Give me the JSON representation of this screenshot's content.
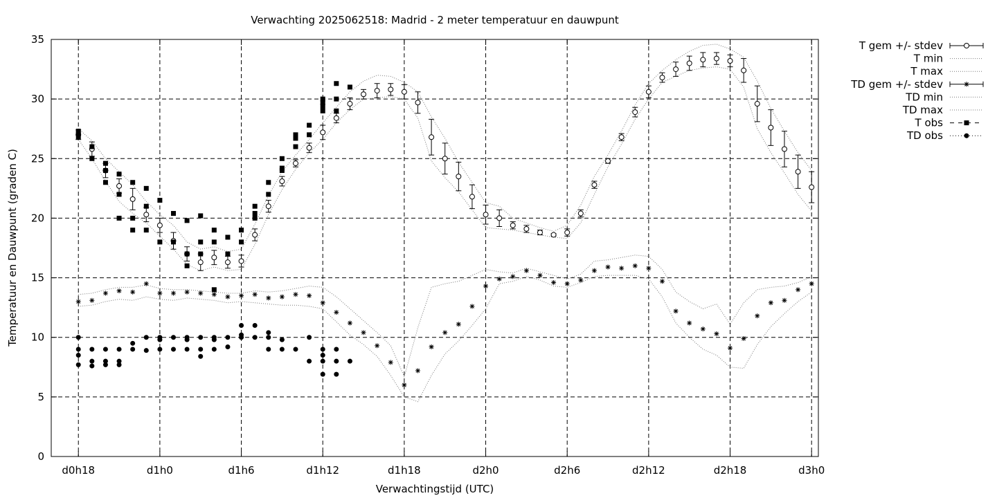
{
  "chart_data": {
    "type": "scatter",
    "title": "Verwachting 2025062518: Madrid - 2 meter temperatuur en dauwpunt",
    "xlabel": "Verwachtingstijd (UTC)",
    "ylabel": "Temperatuur en Dauwpunt (graden C)",
    "x_unit": "hours since d0h0",
    "xlim": [
      16,
      72.5
    ],
    "ylim": [
      0,
      35
    ],
    "x_ticks": [
      {
        "x": 18,
        "label": "d0h18"
      },
      {
        "x": 24,
        "label": "d1h0"
      },
      {
        "x": 30,
        "label": "d1h6"
      },
      {
        "x": 36,
        "label": "d1h12"
      },
      {
        "x": 42,
        "label": "d1h18"
      },
      {
        "x": 48,
        "label": "d2h0"
      },
      {
        "x": 54,
        "label": "d2h6"
      },
      {
        "x": 60,
        "label": "d2h12"
      },
      {
        "x": 66,
        "label": "d2h18"
      },
      {
        "x": 72,
        "label": "d3h0"
      }
    ],
    "y_ticks": [
      0,
      5,
      10,
      15,
      20,
      25,
      30,
      35
    ],
    "grid": true,
    "legend_position": "right, outside plot",
    "series": [
      {
        "name": "T gem +/- stdev",
        "style": "open-circle-errorbar",
        "x": [
          18,
          19,
          20,
          21,
          22,
          23,
          24,
          25,
          26,
          27,
          28,
          29,
          30,
          31,
          32,
          33,
          34,
          35,
          36,
          37,
          38,
          39,
          40,
          41,
          42,
          43,
          44,
          45,
          46,
          47,
          48,
          49,
          50,
          51,
          52,
          53,
          54,
          55,
          56,
          57,
          58,
          59,
          60,
          61,
          62,
          63,
          64,
          65,
          66,
          67,
          68,
          69,
          70,
          71,
          72
        ],
        "y": [
          27.0,
          25.8,
          24.0,
          22.7,
          21.6,
          20.3,
          19.4,
          18.1,
          17.0,
          16.3,
          16.7,
          16.3,
          16.4,
          18.6,
          21.0,
          23.1,
          24.6,
          25.9,
          27.2,
          28.4,
          29.6,
          30.4,
          30.7,
          30.8,
          30.6,
          29.7,
          26.8,
          25.0,
          23.5,
          21.8,
          20.3,
          20.0,
          19.4,
          19.1,
          18.8,
          18.6,
          18.8,
          20.4,
          22.8,
          24.8,
          26.8,
          28.9,
          30.6,
          31.8,
          32.5,
          33.0,
          33.3,
          33.4,
          33.2,
          32.4,
          29.6,
          27.6,
          25.8,
          23.9,
          22.6
        ],
        "err": [
          0.4,
          0.6,
          0.6,
          0.6,
          0.9,
          0.6,
          0.6,
          0.7,
          0.6,
          0.7,
          0.6,
          0.5,
          0.5,
          0.5,
          0.5,
          0.4,
          0.3,
          0.4,
          0.6,
          0.4,
          0.5,
          0.4,
          0.6,
          0.5,
          0.6,
          0.9,
          1.5,
          1.3,
          1.2,
          1.0,
          0.8,
          0.7,
          0.3,
          0.3,
          0.2,
          0.1,
          0.3,
          0.3,
          0.3,
          0.2,
          0.3,
          0.4,
          0.5,
          0.4,
          0.6,
          0.6,
          0.6,
          0.5,
          0.5,
          1.0,
          1.5,
          1.5,
          1.5,
          1.4,
          1.3
        ]
      },
      {
        "name": "T min",
        "style": "dotted",
        "x": [
          18,
          19,
          20,
          21,
          22,
          23,
          24,
          25,
          26,
          27,
          28,
          29,
          30,
          31,
          32,
          33,
          34,
          35,
          36,
          37,
          38,
          39,
          40,
          41,
          42,
          43,
          44,
          45,
          46,
          47,
          48,
          49,
          50,
          51,
          52,
          53,
          54,
          55,
          56,
          57,
          58,
          59,
          60,
          61,
          62,
          63,
          64,
          65,
          66,
          67,
          68,
          69,
          70,
          71,
          72
        ],
        "y": [
          26.6,
          25.0,
          23.1,
          21.4,
          20.4,
          19.6,
          18.5,
          17.4,
          16.1,
          15.6,
          15.9,
          15.6,
          15.7,
          17.8,
          20.3,
          22.4,
          24.1,
          25.5,
          26.6,
          28.0,
          29.1,
          30.0,
          30.1,
          30.2,
          30.0,
          28.4,
          24.8,
          23.4,
          22.2,
          20.7,
          19.2,
          19.1,
          19.0,
          18.8,
          18.6,
          18.4,
          18.3,
          19.6,
          22.0,
          24.3,
          26.2,
          28.3,
          30.0,
          31.4,
          31.9,
          32.4,
          32.6,
          32.7,
          32.5,
          31.0,
          27.5,
          25.5,
          23.8,
          22.0,
          20.6
        ]
      },
      {
        "name": "T max",
        "style": "dotted",
        "x": [
          18,
          19,
          20,
          21,
          22,
          23,
          24,
          25,
          26,
          27,
          28,
          29,
          30,
          31,
          32,
          33,
          34,
          35,
          36,
          37,
          38,
          39,
          40,
          41,
          42,
          43,
          44,
          45,
          46,
          47,
          48,
          49,
          50,
          51,
          52,
          53,
          54,
          55,
          56,
          57,
          58,
          59,
          60,
          61,
          62,
          63,
          64,
          65,
          66,
          67,
          68,
          69,
          70,
          71,
          72
        ],
        "y": [
          27.5,
          26.5,
          25.0,
          23.9,
          22.8,
          21.4,
          20.3,
          19.4,
          18.0,
          17.4,
          17.6,
          17.2,
          17.4,
          19.5,
          21.9,
          23.9,
          25.3,
          26.6,
          28.0,
          29.3,
          30.6,
          31.5,
          32.0,
          31.9,
          31.4,
          30.6,
          28.5,
          26.7,
          24.7,
          23.0,
          21.3,
          21.0,
          20.0,
          19.6,
          19.2,
          18.9,
          19.4,
          21.1,
          23.5,
          25.3,
          27.3,
          29.5,
          31.3,
          32.4,
          33.3,
          34.0,
          34.5,
          34.6,
          34.2,
          33.5,
          31.5,
          29.2,
          27.3,
          25.5,
          24.0
        ]
      },
      {
        "name": "TD gem +/- stdev",
        "style": "asterisk-errorbar",
        "x": [
          18,
          19,
          20,
          21,
          22,
          23,
          24,
          25,
          26,
          27,
          28,
          29,
          30,
          31,
          32,
          33,
          34,
          35,
          36,
          37,
          38,
          39,
          40,
          41,
          42,
          43,
          44,
          45,
          46,
          47,
          48,
          49,
          50,
          51,
          52,
          53,
          54,
          55,
          56,
          57,
          58,
          59,
          60,
          61,
          62,
          63,
          64,
          65,
          66,
          67,
          68,
          69,
          70,
          71,
          72
        ],
        "y": [
          13.0,
          13.1,
          13.7,
          13.9,
          13.8,
          14.5,
          13.7,
          13.7,
          13.8,
          13.7,
          13.6,
          13.4,
          13.5,
          13.6,
          13.3,
          13.4,
          13.6,
          13.5,
          12.9,
          12.1,
          11.2,
          10.4,
          9.3,
          7.9,
          6.0,
          7.2,
          9.2,
          10.4,
          11.1,
          12.6,
          14.3,
          14.9,
          15.1,
          15.6,
          15.2,
          14.6,
          14.5,
          14.8,
          15.6,
          15.9,
          15.8,
          16.0,
          15.8,
          14.7,
          12.2,
          11.2,
          10.7,
          10.3,
          9.1,
          9.9,
          11.8,
          12.9,
          13.1,
          14.0,
          14.5
        ]
      },
      {
        "name": "TD min",
        "style": "dotted",
        "x": [
          18,
          19,
          20,
          21,
          22,
          23,
          24,
          25,
          26,
          27,
          28,
          29,
          30,
          31,
          32,
          33,
          34,
          35,
          36,
          37,
          38,
          39,
          40,
          41,
          42,
          43,
          44,
          45,
          46,
          47,
          48,
          49,
          50,
          51,
          52,
          53,
          54,
          55,
          56,
          57,
          58,
          59,
          60,
          61,
          62,
          63,
          64,
          65,
          66,
          67,
          68,
          69,
          70,
          71,
          72
        ],
        "y": [
          12.6,
          12.7,
          13.0,
          13.2,
          13.1,
          13.4,
          13.2,
          13.1,
          13.3,
          13.2,
          13.1,
          12.9,
          13.0,
          12.9,
          12.8,
          12.7,
          12.7,
          12.6,
          12.4,
          11.3,
          10.2,
          9.4,
          8.4,
          6.8,
          5.0,
          4.6,
          6.8,
          8.6,
          9.7,
          11.0,
          12.4,
          14.5,
          14.7,
          15.1,
          14.8,
          14.3,
          14.2,
          14.6,
          15.1,
          15.2,
          15.2,
          15.2,
          14.9,
          13.4,
          11.2,
          10.0,
          9.0,
          8.5,
          7.5,
          7.4,
          9.4,
          10.9,
          12.0,
          13.0,
          13.8
        ]
      },
      {
        "name": "TD max",
        "style": "dotted",
        "x": [
          18,
          19,
          20,
          21,
          22,
          23,
          24,
          25,
          26,
          27,
          28,
          29,
          30,
          31,
          32,
          33,
          34,
          35,
          36,
          37,
          38,
          39,
          40,
          41,
          42,
          43,
          44,
          45,
          46,
          47,
          48,
          49,
          50,
          51,
          52,
          53,
          54,
          55,
          56,
          57,
          58,
          59,
          60,
          61,
          62,
          63,
          64,
          65,
          66,
          67,
          68,
          69,
          70,
          71,
          72
        ],
        "y": [
          13.6,
          13.7,
          14.0,
          14.2,
          14.2,
          14.4,
          14.1,
          14.0,
          14.0,
          13.9,
          13.8,
          13.7,
          13.7,
          13.9,
          13.8,
          13.9,
          14.1,
          14.3,
          14.2,
          13.4,
          12.4,
          11.4,
          10.4,
          9.3,
          6.7,
          10.8,
          14.2,
          14.5,
          14.7,
          15.2,
          15.7,
          15.5,
          15.4,
          15.8,
          15.5,
          15.2,
          14.9,
          15.3,
          16.4,
          16.5,
          16.7,
          16.9,
          16.8,
          15.7,
          13.8,
          13.0,
          12.4,
          12.8,
          11.1,
          12.9,
          14.0,
          14.2,
          14.3,
          14.6,
          15.1
        ]
      },
      {
        "name": "T obs",
        "style": "filled-square",
        "points": [
          [
            18,
            26.8
          ],
          [
            18,
            27.1
          ],
          [
            18,
            27.3
          ],
          [
            19,
            26.0
          ],
          [
            19,
            25.0
          ],
          [
            20,
            24.6
          ],
          [
            20,
            24.0
          ],
          [
            20,
            23.0
          ],
          [
            21,
            23.7
          ],
          [
            21,
            22.0
          ],
          [
            21,
            20.0
          ],
          [
            22,
            23.0
          ],
          [
            22,
            20.0
          ],
          [
            22,
            19.0
          ],
          [
            23,
            22.5
          ],
          [
            23,
            21.0
          ],
          [
            23,
            19.0
          ],
          [
            24,
            21.5
          ],
          [
            24,
            18.0
          ],
          [
            25,
            20.4
          ],
          [
            25,
            18.0
          ],
          [
            26,
            19.8
          ],
          [
            26,
            17.0
          ],
          [
            26,
            16.0
          ],
          [
            27,
            20.2
          ],
          [
            27,
            18.0
          ],
          [
            27,
            17.0
          ],
          [
            28,
            19.0
          ],
          [
            28,
            18.0
          ],
          [
            28,
            14.0
          ],
          [
            29,
            18.4
          ],
          [
            29,
            17.0
          ],
          [
            30,
            19.0
          ],
          [
            30,
            18.0
          ],
          [
            31,
            21.0
          ],
          [
            31,
            20.4
          ],
          [
            31,
            20.0
          ],
          [
            32,
            23.0
          ],
          [
            32,
            22.0
          ],
          [
            33,
            25.0
          ],
          [
            33,
            24.2
          ],
          [
            33,
            24.0
          ],
          [
            34,
            27.0
          ],
          [
            34,
            26.7
          ],
          [
            34,
            26.0
          ],
          [
            35,
            27.8
          ],
          [
            35,
            27.0
          ],
          [
            36,
            30.0
          ],
          [
            36,
            29.7
          ],
          [
            36,
            29.4
          ],
          [
            36,
            29.0
          ],
          [
            37,
            31.3
          ],
          [
            37,
            30.0
          ],
          [
            37,
            29.0
          ],
          [
            38,
            31.0
          ]
        ]
      },
      {
        "name": "TD obs",
        "style": "filled-circle",
        "points": [
          [
            18,
            10.0
          ],
          [
            18,
            9.0
          ],
          [
            18,
            8.5
          ],
          [
            18,
            7.7
          ],
          [
            19,
            9.0
          ],
          [
            19,
            8.0
          ],
          [
            19,
            7.6
          ],
          [
            20,
            9.0
          ],
          [
            20,
            8.0
          ],
          [
            20,
            7.7
          ],
          [
            21,
            9.0
          ],
          [
            21,
            8.0
          ],
          [
            21,
            7.7
          ],
          [
            22,
            9.5
          ],
          [
            22,
            9.0
          ],
          [
            23,
            10.0
          ],
          [
            23,
            8.9
          ],
          [
            24,
            10.0
          ],
          [
            24,
            9.8
          ],
          [
            24,
            9.0
          ],
          [
            25,
            10.0
          ],
          [
            25,
            9.0
          ],
          [
            26,
            10.0
          ],
          [
            26,
            9.8
          ],
          [
            26,
            9.0
          ],
          [
            27,
            10.0
          ],
          [
            27,
            9.0
          ],
          [
            27,
            8.4
          ],
          [
            28,
            10.0
          ],
          [
            28,
            9.8
          ],
          [
            28,
            9.0
          ],
          [
            29,
            10.0
          ],
          [
            29,
            9.2
          ],
          [
            30,
            11.0
          ],
          [
            30,
            10.2
          ],
          [
            30,
            10.0
          ],
          [
            31,
            11.0
          ],
          [
            31,
            10.0
          ],
          [
            32,
            10.4
          ],
          [
            32,
            10.0
          ],
          [
            32,
            9.0
          ],
          [
            33,
            9.8
          ],
          [
            33,
            9.0
          ],
          [
            34,
            9.0
          ],
          [
            35,
            10.0
          ],
          [
            35,
            8.0
          ],
          [
            36,
            9.0
          ],
          [
            36,
            8.5
          ],
          [
            36,
            8.0
          ],
          [
            36,
            6.9
          ],
          [
            37,
            9.0
          ],
          [
            37,
            8.0
          ],
          [
            37,
            6.9
          ],
          [
            38,
            8.0
          ]
        ]
      }
    ]
  }
}
